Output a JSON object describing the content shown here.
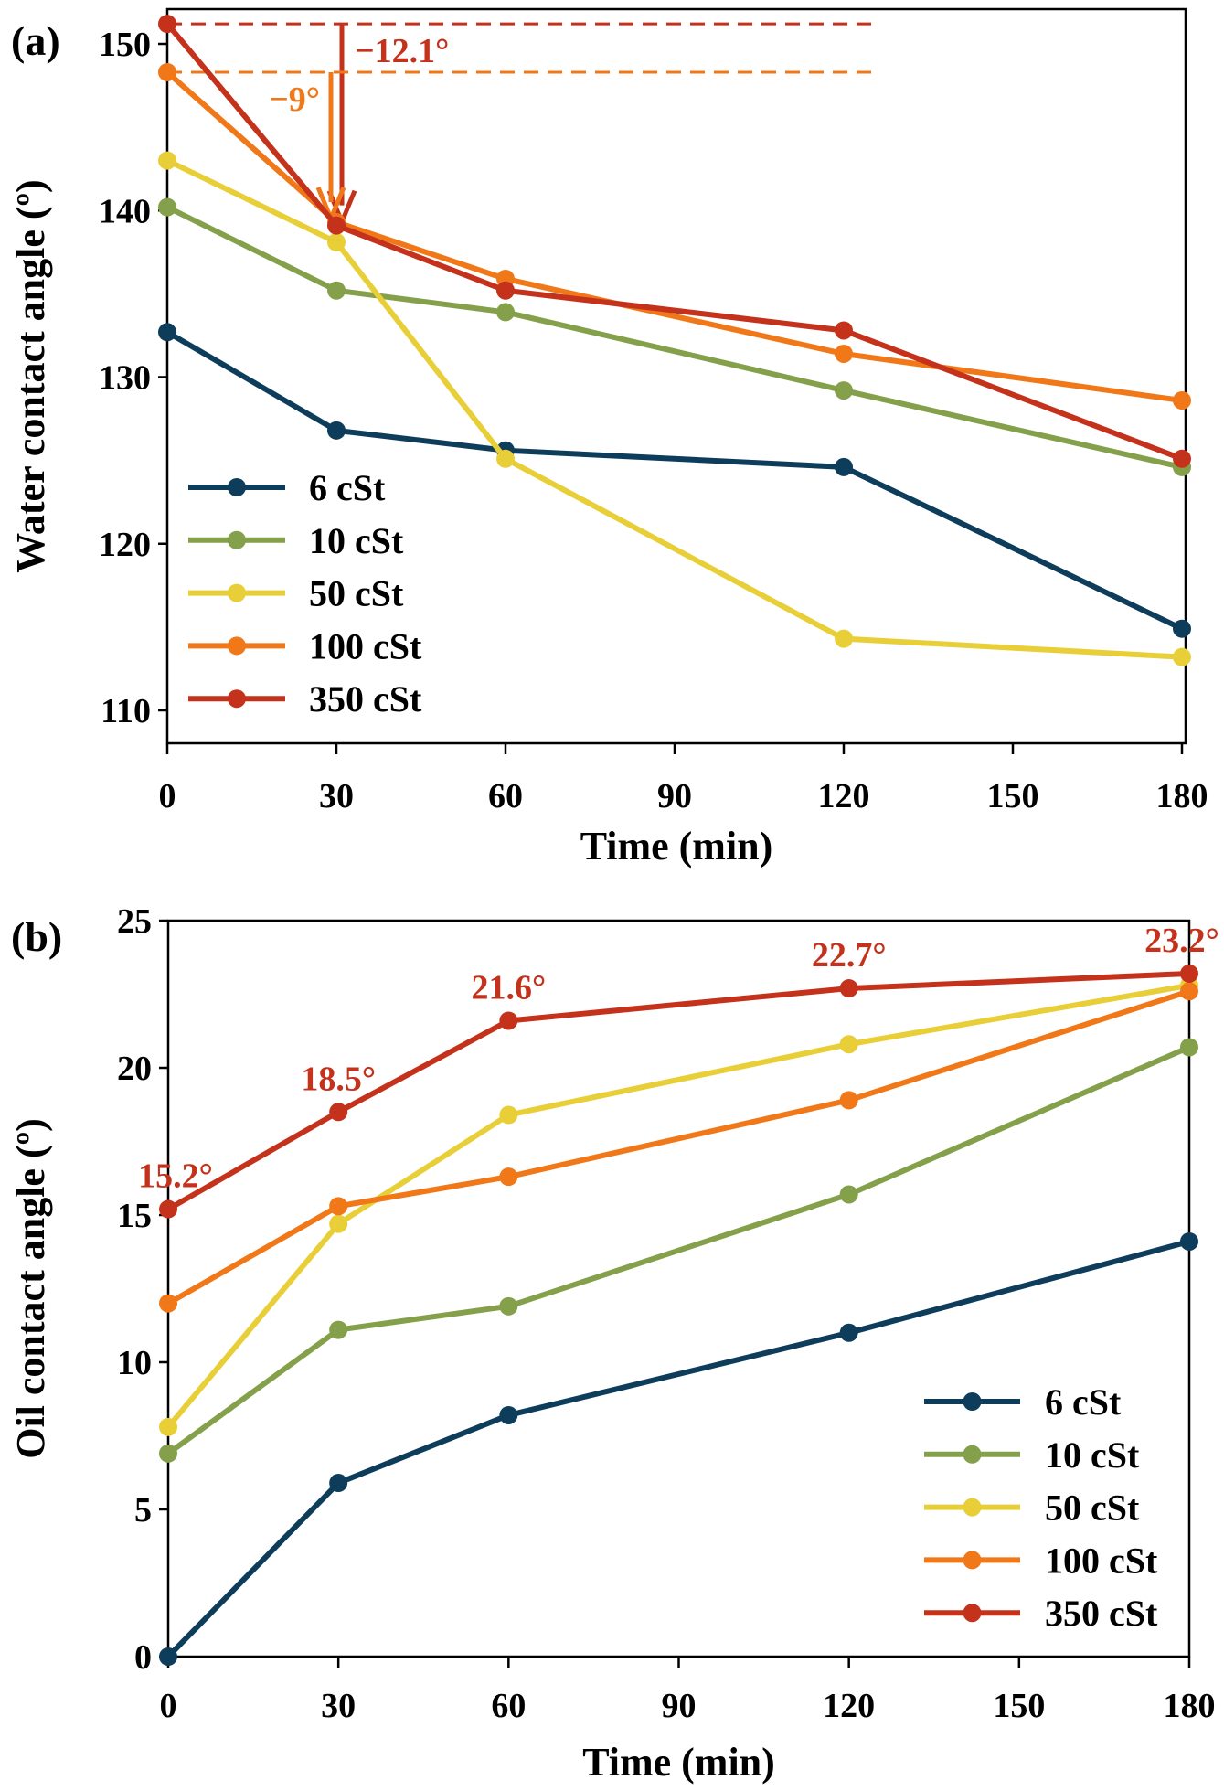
{
  "chart_data": [
    {
      "panel_label": "(a)",
      "type": "line",
      "title": "",
      "xlabel": "Time (min)",
      "ylabel": "Water contact angle (º)",
      "x": [
        0,
        30,
        60,
        120,
        180
      ],
      "xlim": [
        0,
        180
      ],
      "ylim": [
        108,
        152
      ],
      "xticks": [
        0,
        30,
        60,
        90,
        120,
        150,
        180
      ],
      "yticks": [
        110,
        120,
        130,
        140,
        150
      ],
      "grid": false,
      "legend_position": "lower-left",
      "series": [
        {
          "name": "6 cSt",
          "color": "#0e3d5c",
          "values": [
            132.7,
            126.8,
            125.6,
            124.6,
            114.9
          ]
        },
        {
          "name": "10 cSt",
          "color": "#85a04a",
          "values": [
            140.2,
            135.2,
            133.9,
            129.2,
            124.6
          ]
        },
        {
          "name": "50 cSt",
          "color": "#e8cf38",
          "values": [
            143.0,
            138.1,
            125.1,
            114.3,
            113.2
          ]
        },
        {
          "name": "100 cSt",
          "color": "#f07818",
          "values": [
            148.3,
            139.3,
            135.9,
            131.4,
            128.6
          ]
        },
        {
          "name": "350 cSt",
          "color": "#c4321c",
          "values": [
            151.2,
            139.1,
            135.2,
            132.8,
            125.1
          ]
        }
      ],
      "annotations": [
        {
          "text": "−12.1°",
          "color": "#c4321c",
          "from_value": 151.2,
          "to_value": 139.1,
          "at_x": 30
        },
        {
          "text": "−9°",
          "color": "#f07818",
          "from_value": 148.3,
          "to_value": 139.3,
          "at_x": 30
        }
      ]
    },
    {
      "panel_label": "(b)",
      "type": "line",
      "title": "",
      "xlabel": "Time (min)",
      "ylabel": "Oil contact angle (º)",
      "x": [
        0,
        30,
        60,
        120,
        180
      ],
      "xlim": [
        0,
        180
      ],
      "ylim": [
        0,
        25
      ],
      "xticks": [
        0,
        30,
        60,
        90,
        120,
        150,
        180
      ],
      "yticks": [
        0,
        5,
        10,
        15,
        20,
        25
      ],
      "grid": false,
      "legend_position": "lower-right",
      "series": [
        {
          "name": "6 cSt",
          "color": "#0e3d5c",
          "values": [
            0.0,
            5.9,
            8.2,
            11.0,
            14.1
          ]
        },
        {
          "name": "10 cSt",
          "color": "#85a04a",
          "values": [
            6.9,
            11.1,
            11.9,
            15.7,
            20.7
          ]
        },
        {
          "name": "50 cSt",
          "color": "#e8cf38",
          "values": [
            7.8,
            14.7,
            18.4,
            20.8,
            22.8
          ]
        },
        {
          "name": "100 cSt",
          "color": "#f07818",
          "values": [
            12.0,
            15.3,
            16.3,
            18.9,
            22.6
          ]
        },
        {
          "name": "350 cSt",
          "color": "#c4321c",
          "values": [
            15.2,
            18.5,
            21.6,
            22.7,
            23.2
          ]
        }
      ],
      "data_labels": {
        "series": "350 cSt",
        "color": "#c4321c",
        "labels": [
          "15.2°",
          "18.5°",
          "21.6°",
          "22.7°",
          "23.2°"
        ]
      }
    }
  ]
}
